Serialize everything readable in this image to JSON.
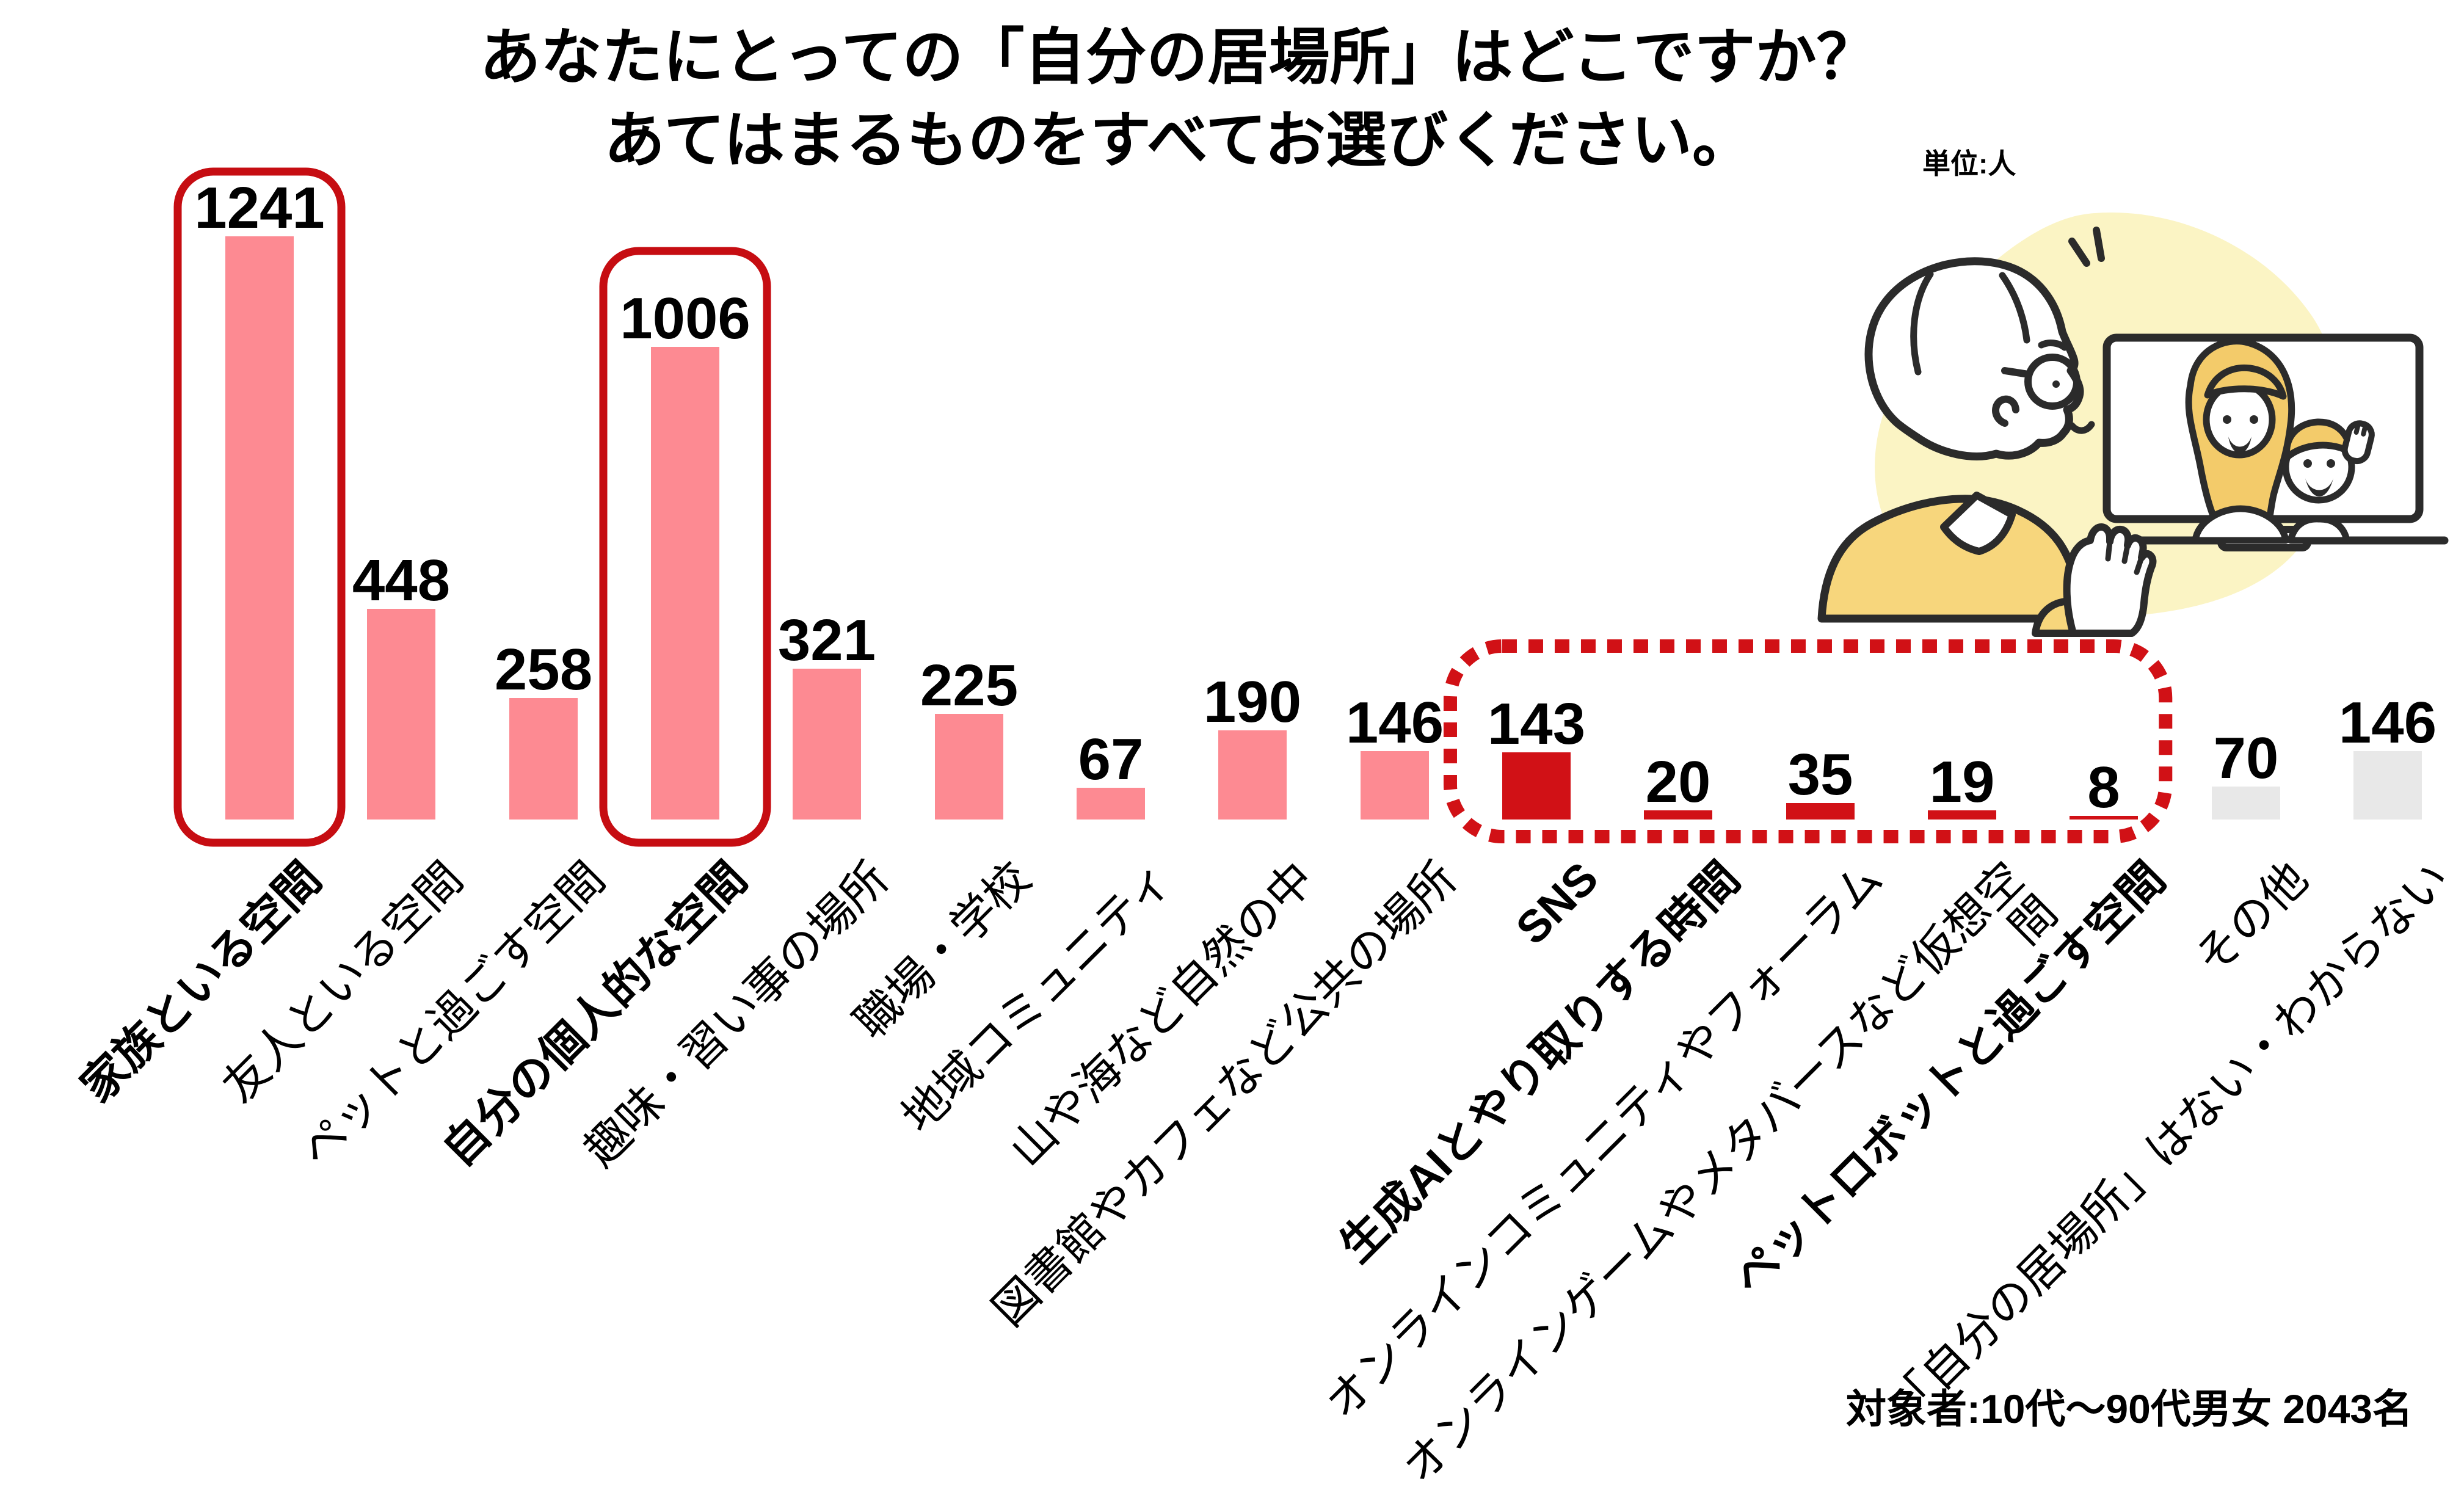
{
  "title": {
    "line1": "あなたにとっての「自分の居場所」はどこですか？",
    "line2": "あてはまるものをすべてお選びください。"
  },
  "unit_note": "単位:人",
  "source_note": "対象者:10代～90代男女 2043名",
  "colors": {
    "bar_pink": "#fd8a92",
    "bar_red": "#d11116",
    "bar_gray": "#e8e8e8",
    "solid_box_red": "#c60d12",
    "dotted_box_red": "#d11116",
    "blob_yellow": "#fbf4c4",
    "sweater_yellow": "#f7d67c",
    "hair_blonde": "#f3cb6a",
    "outline_dark": "#2b2b2b"
  },
  "chart_data": {
    "type": "bar",
    "title": "あなたにとっての「自分の居場所」はどこですか？ あてはまるものをすべてお選びください。",
    "unit": "人",
    "grid": false,
    "value_labels": true,
    "ylim": [
      0,
      1300
    ],
    "categories": [
      "家族といる空間",
      "友人といる空間",
      "ペットと過ごす空間",
      "自分の個人的な空間",
      "趣味・習い事の場所",
      "職場・学校",
      "地域コミュニティ",
      "山や海など自然の中",
      "図書館やカフェなど公共の場所",
      "SNS",
      "生成AIとやり取りする時間",
      "オンラインコミュニティやフォーラム",
      "オンラインゲームやメタバースなど仮想空間",
      "ペットロボットと過ごす空間",
      "その他",
      "「自分の居場所」はない・わからない"
    ],
    "values": [
      1241,
      448,
      258,
      1006,
      321,
      225,
      67,
      190,
      146,
      143,
      20,
      35,
      19,
      8,
      70,
      146
    ],
    "bars": [
      {
        "label": "家族といる空間",
        "display_label": "家族といる空間",
        "value": 1241,
        "color": "pink",
        "bold": true
      },
      {
        "label": "友人といる空間",
        "display_label": "友人といる空間",
        "value": 448,
        "color": "pink",
        "bold": false
      },
      {
        "label": "ペットと過ごす空間",
        "display_label": "ペットと過ごす空間",
        "value": 258,
        "color": "pink",
        "bold": false
      },
      {
        "label": "自分の個人的な空間",
        "display_label": "自分の個人的な空間",
        "value": 1006,
        "color": "pink",
        "bold": true
      },
      {
        "label": "趣味・習い事の場所",
        "display_label": "趣味・習い事の場所",
        "value": 321,
        "color": "pink",
        "bold": false
      },
      {
        "label": "職場・学校",
        "display_label": "職場・学校",
        "value": 225,
        "color": "pink",
        "bold": false
      },
      {
        "label": "地域コミュニティ",
        "display_label": "地域コミュニティ",
        "value": 67,
        "color": "pink",
        "bold": false
      },
      {
        "label": "山や海など自然の中",
        "display_label": "山や海など自然の中",
        "value": 190,
        "color": "pink",
        "bold": false
      },
      {
        "label": "図書館やカフェなど公共の場所",
        "display_label": "図書館やカフェなど公共の場所",
        "value": 146,
        "color": "pink",
        "bold": false
      },
      {
        "label": "SNS",
        "display_label": "SNS",
        "value": 143,
        "color": "red",
        "bold": true
      },
      {
        "label": "生成AIとやり取りする時間",
        "display_label": "生成AIとやり取りする時間",
        "value": 20,
        "color": "red",
        "bold": true
      },
      {
        "label": "オンラインコミュニティやフォーラム",
        "display_label": "オンラインコミュニティやフォーラム",
        "value": 35,
        "color": "red",
        "bold": false
      },
      {
        "label": "オンラインゲームやメタバースなど仮想空間",
        "display_label": "オンラインゲームやメタバースなど仮想空\n間",
        "value": 19,
        "color": "red",
        "bold": false
      },
      {
        "label": "ペットロボットと過ごす空間",
        "display_label": "ペットロボットと過ごす空間",
        "value": 8,
        "color": "red",
        "bold": true
      },
      {
        "label": "その他",
        "display_label": "その他",
        "value": 70,
        "color": "gray",
        "bold": false
      },
      {
        "label": "「自分の居場所」はない・わからない",
        "display_label": "「自分の居場所」はない・わからない",
        "value": 146,
        "color": "gray",
        "bold": false
      }
    ],
    "annotations": {
      "solid_boxes": [
        {
          "bar_index": 0,
          "label": "家族といる空間"
        },
        {
          "bar_index": 3,
          "label": "自分の個人的な空間"
        }
      ],
      "dotted_box": {
        "from_index": 9,
        "to_index": 13
      }
    }
  }
}
